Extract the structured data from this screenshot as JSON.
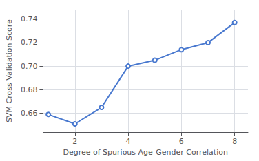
{
  "chart_data": {
    "type": "line",
    "x": [
      1,
      2,
      3,
      4,
      5,
      6,
      7,
      8
    ],
    "values": [
      0.659,
      0.651,
      0.665,
      0.7,
      0.705,
      0.714,
      0.72,
      0.737
    ],
    "color": "#4878cf",
    "xlabel": "Degree of Spurious Age-Gender Correlation",
    "ylabel": "SVM Cross Validation Score",
    "xlim": [
      0.8,
      8.5
    ],
    "ylim": [
      0.644,
      0.748
    ],
    "xticks": [
      2,
      4,
      6,
      8
    ],
    "yticks": [
      0.66,
      0.68,
      {
        "value": 0.7,
        "label": "0.70"
      },
      0.72,
      0.74
    ],
    "grid": true
  }
}
